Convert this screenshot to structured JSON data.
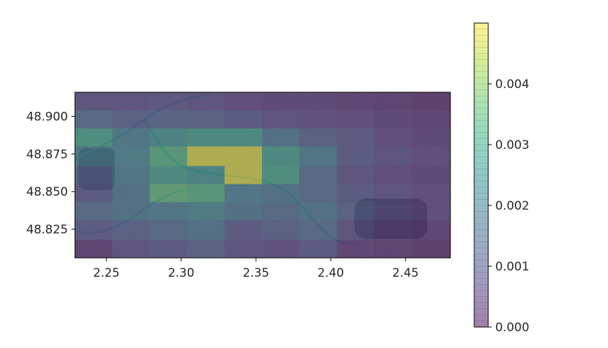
{
  "chart_data": {
    "type": "heatmap",
    "title": "",
    "xlabel": "",
    "ylabel": "",
    "background": "satellite map (Paris area) under a semi-transparent heatmap",
    "xlim": [
      2.229,
      2.48
    ],
    "ylim": [
      48.806,
      48.916
    ],
    "x_ticks": [
      2.25,
      2.3,
      2.35,
      2.4,
      2.45
    ],
    "x_tick_labels": [
      "2.25",
      "2.30",
      "2.35",
      "2.40",
      "2.45"
    ],
    "y_ticks": [
      48.825,
      48.85,
      48.875,
      48.9
    ],
    "y_tick_labels": [
      "48.825",
      "48.850",
      "48.875",
      "48.900"
    ],
    "grid": false,
    "colormap": "viridis",
    "opacity": 0.5,
    "x_bins": [
      2.229,
      2.254,
      2.279,
      2.304,
      2.329,
      2.354,
      2.379,
      2.404,
      2.429,
      2.454,
      2.48
    ],
    "y_bins": [
      48.806,
      48.818,
      48.831,
      48.843,
      48.855,
      48.867,
      48.88,
      48.892,
      48.904,
      48.916
    ],
    "values": [
      [
        0.0003,
        0.0008,
        0.001,
        0.0012,
        0.0008,
        0.0007,
        0.001,
        0.0004,
        0.0003,
        0.0002
      ],
      [
        0.001,
        0.0012,
        0.0015,
        0.0018,
        0.001,
        0.0012,
        0.0015,
        0.0008,
        0.0005,
        0.0004
      ],
      [
        0.0015,
        0.0018,
        0.002,
        0.0022,
        0.0018,
        0.0015,
        0.0018,
        0.0012,
        0.0008,
        0.0006
      ],
      [
        0.001,
        0.0018,
        0.0035,
        0.0033,
        0.002,
        0.0018,
        0.0015,
        0.001,
        0.0008,
        0.0006
      ],
      [
        0.0012,
        0.002,
        0.0028,
        0.0025,
        0.0048,
        0.003,
        0.0015,
        0.0008,
        0.0006,
        0.0005
      ],
      [
        0.002,
        0.0022,
        0.0033,
        0.0048,
        0.0048,
        0.0028,
        0.002,
        0.001,
        0.0008,
        0.0006
      ],
      [
        0.003,
        0.002,
        0.0025,
        0.0028,
        0.0028,
        0.0018,
        0.0012,
        0.001,
        0.0006,
        0.0005
      ],
      [
        0.0015,
        0.0012,
        0.0013,
        0.0012,
        0.001,
        0.0008,
        0.0007,
        0.0006,
        0.0005,
        0.0004
      ],
      [
        0.0008,
        0.0008,
        0.0009,
        0.0008,
        0.0006,
        0.0005,
        0.0005,
        0.0004,
        0.0003,
        0.0002
      ]
    ],
    "colorbar": {
      "range": [
        0.0,
        0.005
      ],
      "ticks": [
        0.0,
        0.001,
        0.002,
        0.003,
        0.004
      ],
      "tick_labels": [
        "0.000",
        "0.001",
        "0.002",
        "0.003",
        "0.004"
      ]
    }
  }
}
